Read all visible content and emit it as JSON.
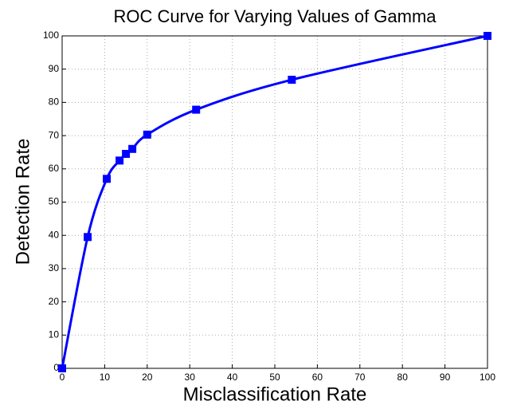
{
  "chart_data": {
    "type": "line",
    "title": "ROC Curve for Varying Values of Gamma",
    "xlabel": "Misclassification Rate",
    "ylabel": "Detection Rate",
    "x": [
      0,
      6,
      10.5,
      13.5,
      15,
      16.5,
      20,
      31.5,
      54,
      100
    ],
    "series": [
      {
        "color": "#0000ff",
        "values": [
          0,
          39.5,
          57,
          62.5,
          64.5,
          66,
          70.3,
          77.8,
          86.8,
          100
        ]
      }
    ],
    "xlim": [
      0,
      100
    ],
    "xticks": [
      0,
      10,
      20,
      30,
      40,
      50,
      60,
      70,
      80,
      90,
      100
    ],
    "ylim": [
      0,
      100
    ],
    "yticks": [
      0,
      10,
      20,
      30,
      40,
      50,
      60,
      70,
      80,
      90,
      100
    ],
    "grid": true
  }
}
